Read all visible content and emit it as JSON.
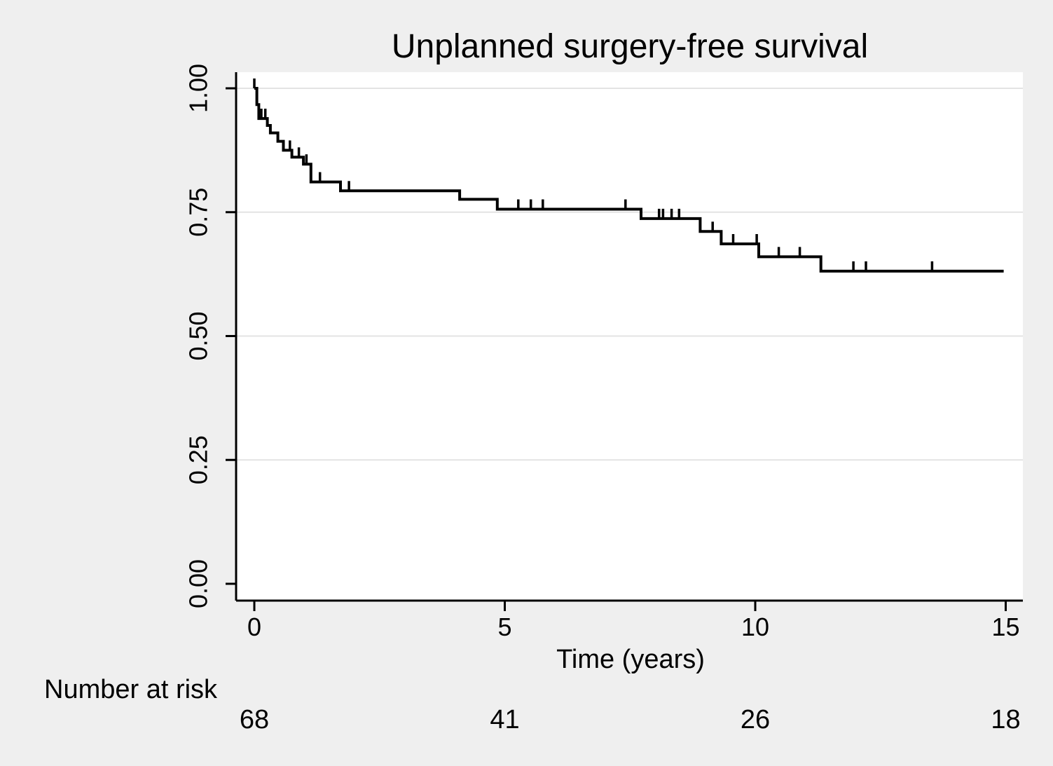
{
  "chart_data": {
    "type": "line",
    "subtype": "kaplan-meier-step-curve",
    "title": "Unplanned surgery-free survival",
    "xlabel": "Time (years)",
    "ylabel": "",
    "xlim": [
      0,
      15
    ],
    "ylim": [
      0,
      1
    ],
    "grid": "horizontal-light-gray-at-yticks-0.25-to-1.00",
    "legend_position": "none",
    "x_ticks": {
      "values": [
        0,
        5,
        10,
        15
      ],
      "labels": [
        "0",
        "5",
        "10",
        "15"
      ]
    },
    "y_ticks": {
      "values": [
        1.0,
        0.75,
        0.5,
        0.25,
        0.0
      ],
      "labels": [
        "1.00",
        "0.75",
        "0.50",
        "0.25",
        "0.00"
      ]
    },
    "gridline_values": [
      1.0,
      0.75,
      0.5,
      0.25
    ],
    "series": [
      {
        "name": "Unplanned surgery-free survival",
        "color": "#000000",
        "steps": [
          [
            0.0,
            1.0
          ],
          [
            0.05,
            0.967
          ],
          [
            0.09,
            0.939
          ],
          [
            0.26,
            0.925
          ],
          [
            0.32,
            0.91
          ],
          [
            0.47,
            0.893
          ],
          [
            0.58,
            0.875
          ],
          [
            0.75,
            0.861
          ],
          [
            0.98,
            0.847
          ],
          [
            1.13,
            0.811
          ],
          [
            1.72,
            0.793
          ],
          [
            4.1,
            0.776
          ],
          [
            4.85,
            0.756
          ],
          [
            7.72,
            0.737
          ],
          [
            8.9,
            0.711
          ],
          [
            9.32,
            0.686
          ],
          [
            10.07,
            0.66
          ],
          [
            11.31,
            0.631
          ]
        ],
        "end_time": 14.96,
        "final_survival": 0.631,
        "censor_marks": [
          [
            0.0,
            1.0
          ],
          [
            0.14,
            0.939
          ],
          [
            0.22,
            0.939
          ],
          [
            0.71,
            0.875
          ],
          [
            0.89,
            0.861
          ],
          [
            1.04,
            0.847
          ],
          [
            1.31,
            0.811
          ],
          [
            1.89,
            0.793
          ],
          [
            5.27,
            0.756
          ],
          [
            5.52,
            0.756
          ],
          [
            5.76,
            0.756
          ],
          [
            7.41,
            0.756
          ],
          [
            8.08,
            0.737
          ],
          [
            8.16,
            0.737
          ],
          [
            8.33,
            0.737
          ],
          [
            8.48,
            0.737
          ],
          [
            9.15,
            0.711
          ],
          [
            9.56,
            0.686
          ],
          [
            10.03,
            0.686
          ],
          [
            10.47,
            0.66
          ],
          [
            10.89,
            0.66
          ],
          [
            11.96,
            0.631
          ],
          [
            12.21,
            0.631
          ],
          [
            13.53,
            0.631
          ]
        ]
      }
    ],
    "risk_table": {
      "label": "Number at risk",
      "times": [
        0,
        5,
        10,
        15
      ],
      "counts": [
        "68",
        "41",
        "26",
        "18"
      ]
    },
    "colors": {
      "figure_background": "#efefef",
      "plot_background": "#ffffff",
      "gridline": "#e3e3e3",
      "axis": "#000000",
      "curve": "#000000",
      "text": "#000000"
    }
  }
}
